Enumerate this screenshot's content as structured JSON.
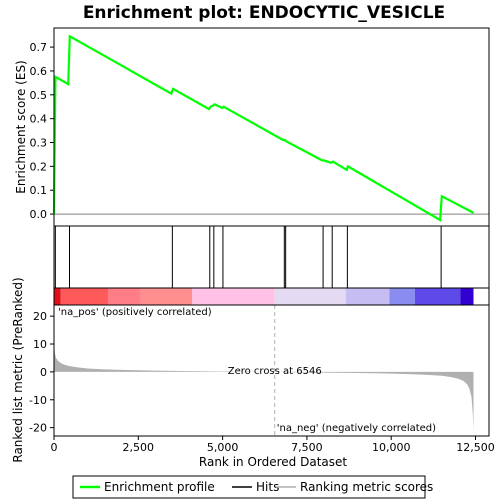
{
  "title": "Enrichment plot: ENDOCYTIC_VESICLE",
  "colors": {
    "es_line": "#00ff00",
    "hits": "#000000",
    "ranking_fill": "#b0b0b0",
    "pos_label": "#ff0000",
    "neg_label": "#0000ff",
    "zero_line": "#b0b0b0"
  },
  "chart_data": {
    "type": "line",
    "top_panel": {
      "ylabel": "Enrichment score (ES)",
      "ylim": [
        -0.05,
        0.78
      ],
      "yticks": [
        0.0,
        0.1,
        0.2,
        0.3,
        0.4,
        0.5,
        0.6,
        0.7
      ],
      "ytick_labels": [
        "0.0",
        "0.1",
        "0.2",
        "0.3",
        "0.4",
        "0.5",
        "0.6",
        "0.7"
      ],
      "series": [
        {
          "name": "Enrichment profile",
          "x": [
            0,
            40,
            50,
            420,
            470,
            3480,
            3530,
            4600,
            4640,
            4720,
            4760,
            4990,
            5030,
            6800,
            6850,
            6890,
            7950,
            8000,
            8220,
            8270,
            8680,
            8720,
            11450,
            11500,
            12440
          ],
          "y": [
            0.0,
            0.55,
            0.575,
            0.545,
            0.745,
            0.505,
            0.525,
            0.44,
            0.45,
            0.455,
            0.46,
            0.445,
            0.45,
            0.31,
            0.31,
            0.305,
            0.225,
            0.225,
            0.215,
            0.22,
            0.185,
            0.2,
            -0.025,
            0.075,
            0.005
          ]
        }
      ]
    },
    "hits": [
      40,
      460,
      3510,
      4620,
      4740,
      5010,
      6830,
      6870,
      7980,
      8250,
      8700,
      11480
    ],
    "heat_bar": [
      {
        "from": 0,
        "to": 200,
        "color": "#e0101a"
      },
      {
        "from": 200,
        "to": 1600,
        "color": "#ff5a5a"
      },
      {
        "from": 1600,
        "to": 2550,
        "color": "#ff7d87"
      },
      {
        "from": 2550,
        "to": 4100,
        "color": "#ff8e8e"
      },
      {
        "from": 4100,
        "to": 6546,
        "color": "#ffc2e6"
      },
      {
        "from": 6546,
        "to": 8650,
        "color": "#e4daf2"
      },
      {
        "from": 8650,
        "to": 9950,
        "color": "#c6bef2"
      },
      {
        "from": 9950,
        "to": 10700,
        "color": "#8a8cf0"
      },
      {
        "from": 10700,
        "to": 12050,
        "color": "#5d4ae8"
      },
      {
        "from": 12050,
        "to": 12440,
        "color": "#3200d0"
      }
    ],
    "bottom_panel": {
      "ylabel": "Ranked list metric (PreRanked)",
      "ylim": [
        -23,
        24
      ],
      "yticks": [
        -20,
        -10,
        0,
        10,
        20
      ],
      "ytick_labels": [
        "-20",
        "-10",
        "0",
        "10",
        "20"
      ],
      "series": [
        {
          "name": "Ranking metric scores",
          "x": [
            0,
            20,
            60,
            120,
            200,
            300,
            450,
            700,
            1000,
            1500,
            2000,
            3000,
            4000,
            5000,
            6000,
            6546,
            7000,
            8000,
            9000,
            10000,
            10500,
            11000,
            11500,
            11800,
            12000,
            12150,
            12250,
            12320,
            12380,
            12420,
            12440
          ],
          "y": [
            12,
            7,
            5,
            4,
            3.2,
            2.6,
            2.1,
            1.6,
            1.2,
            0.9,
            0.7,
            0.45,
            0.3,
            0.15,
            0.05,
            0.0,
            -0.1,
            -0.25,
            -0.4,
            -0.6,
            -0.8,
            -1.0,
            -1.4,
            -1.9,
            -2.5,
            -3.3,
            -4.4,
            -6,
            -9,
            -15,
            -21
          ]
        }
      ],
      "annotations": {
        "pos": "'na_pos' (positively correlated)",
        "neg": "'na_neg' (negatively correlated)",
        "zero": "Zero cross at 6546"
      },
      "zero_cross": 6546
    },
    "x_axis": {
      "xlabel": "Rank in Ordered Dataset",
      "xlim": [
        0,
        12900
      ],
      "xticks": [
        0,
        2500,
        5000,
        7500,
        10000,
        12500
      ],
      "xtick_labels": [
        "0",
        "2,500",
        "5,000",
        "7,500",
        "10,000",
        "12,500"
      ]
    },
    "legend": {
      "placement": "bottom",
      "items": [
        "Enrichment profile",
        "Hits",
        "Ranking metric scores"
      ]
    }
  }
}
